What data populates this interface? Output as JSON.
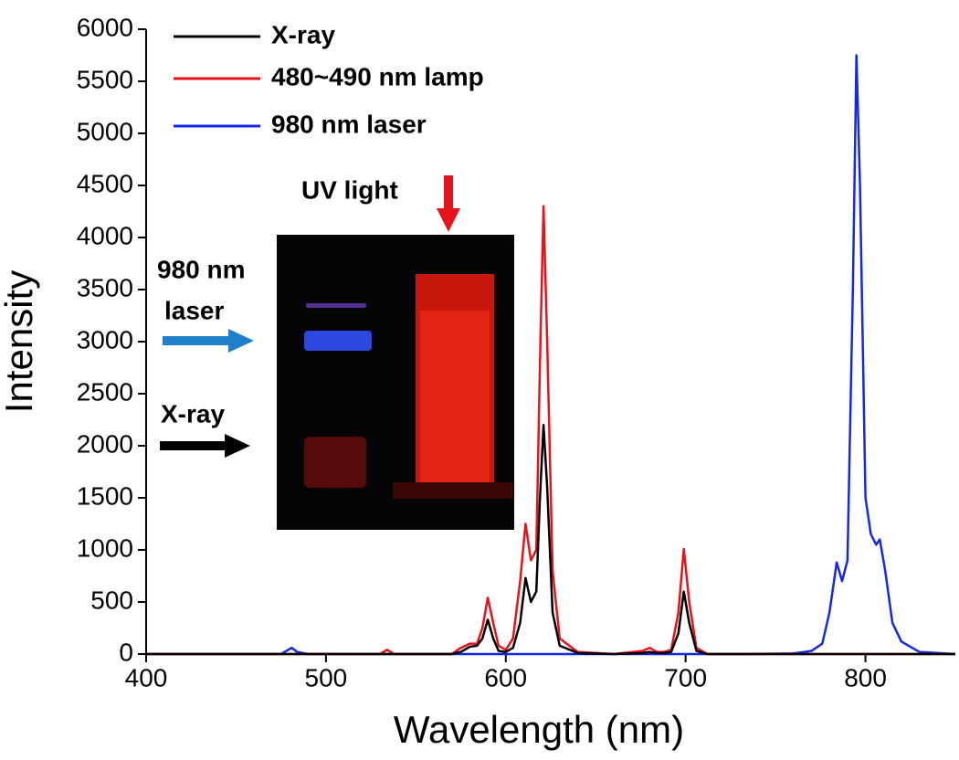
{
  "chart_data": {
    "type": "line",
    "x_label": "Wavelength (nm)",
    "y_label": "Intensity",
    "xlim": [
      400,
      850
    ],
    "ylim": [
      0,
      6000
    ],
    "xticks": [
      400,
      500,
      600,
      700,
      800
    ],
    "yticks": [
      0,
      500,
      1000,
      1500,
      2000,
      2500,
      3000,
      3500,
      4000,
      4500,
      5000,
      5500,
      6000
    ],
    "legend": "upper left",
    "annotations": [
      "UV light",
      "980 nm",
      "laser",
      "X-ray"
    ],
    "x": [
      400,
      450,
      475,
      478,
      481,
      484,
      490,
      520,
      530,
      534,
      538,
      550,
      570,
      575,
      580,
      584,
      587,
      590,
      593,
      596,
      600,
      604,
      608,
      611,
      614,
      617,
      619,
      621,
      623,
      626,
      630,
      640,
      660,
      676,
      680,
      684,
      688,
      692,
      696,
      699,
      702,
      706,
      712,
      730,
      760,
      770,
      776,
      780,
      784,
      787,
      790,
      793,
      795,
      797,
      800,
      803,
      806,
      808,
      811,
      815,
      820,
      830,
      850
    ],
    "series": [
      {
        "name": "X-ray",
        "color": "#000000",
        "values": [
          0,
          0,
          0,
          0,
          0,
          0,
          0,
          0,
          0,
          0,
          0,
          0,
          0,
          20,
          70,
          80,
          150,
          330,
          150,
          30,
          20,
          60,
          300,
          730,
          500,
          600,
          1500,
          2200,
          1600,
          400,
          80,
          10,
          0,
          10,
          20,
          10,
          10,
          20,
          200,
          600,
          300,
          30,
          0,
          0,
          0,
          0,
          0,
          0,
          0,
          0,
          0,
          0,
          0,
          0,
          0,
          0,
          0,
          0,
          0,
          0,
          0,
          0,
          0
        ]
      },
      {
        "name": "480~490 nm lamp",
        "color": "#e8121b",
        "values": [
          0,
          0,
          0,
          0,
          0,
          0,
          0,
          0,
          0,
          40,
          0,
          0,
          0,
          60,
          100,
          100,
          250,
          540,
          300,
          80,
          40,
          150,
          700,
          1250,
          900,
          1000,
          2800,
          4300,
          3000,
          800,
          150,
          20,
          0,
          30,
          60,
          20,
          20,
          40,
          400,
          1010,
          500,
          60,
          0,
          0,
          0,
          0,
          0,
          0,
          0,
          0,
          0,
          0,
          0,
          0,
          0,
          0,
          0,
          0,
          0,
          0,
          0,
          0,
          0
        ]
      },
      {
        "name": "980 nm laser",
        "color": "#1428e6",
        "values": [
          0,
          0,
          0,
          30,
          60,
          20,
          0,
          0,
          0,
          0,
          0,
          0,
          0,
          0,
          0,
          0,
          0,
          0,
          0,
          0,
          0,
          0,
          0,
          0,
          0,
          0,
          0,
          0,
          0,
          0,
          0,
          0,
          0,
          0,
          0,
          0,
          0,
          0,
          0,
          0,
          0,
          0,
          0,
          0,
          5,
          30,
          100,
          400,
          880,
          700,
          900,
          3500,
          5750,
          4500,
          1500,
          1150,
          1050,
          1100,
          800,
          300,
          120,
          20,
          0
        ]
      }
    ]
  }
}
